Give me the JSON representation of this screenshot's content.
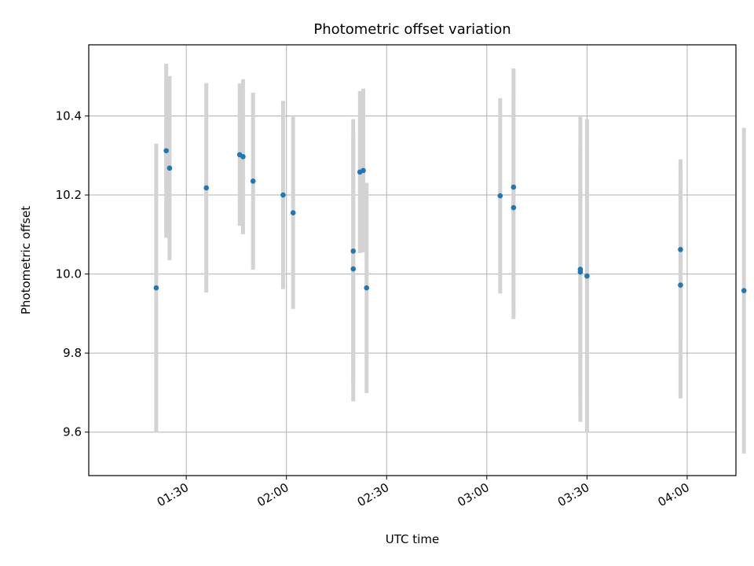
{
  "chart_data": {
    "type": "scatter",
    "title": "Photometric offset variation",
    "xlabel": "UTC time",
    "ylabel": "Photometric offset",
    "x_tick_labels": [
      "01:30",
      "02:00",
      "02:30",
      "03:00",
      "03:30",
      "04:00"
    ],
    "x_ticks_minutes": [
      90,
      120,
      150,
      180,
      210,
      240
    ],
    "xlim_minutes": [
      60.8,
      254.6
    ],
    "y_ticks": [
      9.6,
      9.8,
      10.0,
      10.2,
      10.4
    ],
    "y_tick_labels": [
      "9.6",
      "9.8",
      "10.0",
      "10.2",
      "10.4"
    ],
    "ylim": [
      9.49,
      10.58
    ],
    "grid": true,
    "marker_color": "#1f77b4",
    "errorbar_color": "#d3d3d3",
    "points": [
      {
        "t": "01:21",
        "y": 9.965,
        "err": 0.365
      },
      {
        "t": "01:24",
        "y": 10.312,
        "err": 0.22
      },
      {
        "t": "01:25",
        "y": 10.268,
        "err": 0.233
      },
      {
        "t": "01:36",
        "y": 10.218,
        "err": 0.265
      },
      {
        "t": "01:46",
        "y": 10.302,
        "err": 0.18
      },
      {
        "t": "01:47",
        "y": 10.297,
        "err": 0.196
      },
      {
        "t": "01:50",
        "y": 10.235,
        "err": 0.224
      },
      {
        "t": "01:59",
        "y": 10.2,
        "err": 0.238
      },
      {
        "t": "02:02",
        "y": 10.155,
        "err": 0.243
      },
      {
        "t": "02:20",
        "y": 10.058,
        "err": 0.334
      },
      {
        "t": "02:20",
        "y": 10.013,
        "err": 0.335
      },
      {
        "t": "02:22",
        "y": 10.258,
        "err": 0.205
      },
      {
        "t": "02:23",
        "y": 10.262,
        "err": 0.207
      },
      {
        "t": "02:24",
        "y": 9.965,
        "err": 0.266
      },
      {
        "t": "03:04",
        "y": 10.198,
        "err": 0.247
      },
      {
        "t": "03:08",
        "y": 10.22,
        "err": 0.3
      },
      {
        "t": "03:08",
        "y": 10.168,
        "err": 0.282
      },
      {
        "t": "03:28",
        "y": 10.005,
        "err": 0.316
      },
      {
        "t": "03:28",
        "y": 10.012,
        "err": 0.386
      },
      {
        "t": "03:30",
        "y": 9.995,
        "err": 0.397
      },
      {
        "t": "03:58",
        "y": 10.062,
        "err": 0.228
      },
      {
        "t": "03:58",
        "y": 9.972,
        "err": 0.287
      },
      {
        "t": "04:17",
        "y": 9.958,
        "err": 0.412
      }
    ]
  }
}
